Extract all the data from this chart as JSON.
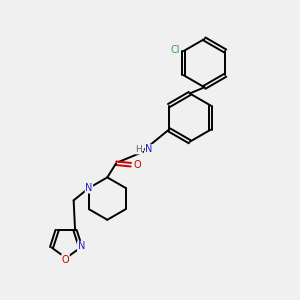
{
  "bg_color": "#f0f0f0",
  "bond_color": "#000000",
  "atom_colors": {
    "N": "#2020cc",
    "O": "#cc0000",
    "Cl": "#40a040",
    "H": "#606060",
    "C": "#000000"
  },
  "figsize": [
    3.0,
    3.0
  ],
  "dpi": 100,
  "lw": 1.4,
  "fs": 7.0
}
